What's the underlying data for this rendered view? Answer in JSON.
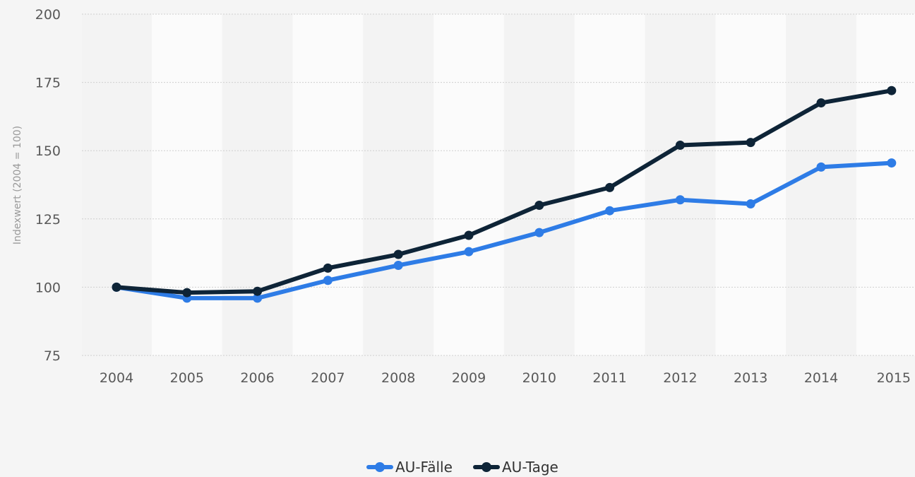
{
  "chart_data": {
    "type": "line",
    "ylabel": "Indexwert (2004 = 100)",
    "xlabel": "",
    "categories": [
      "2004",
      "2005",
      "2006",
      "2007",
      "2008",
      "2009",
      "2010",
      "2011",
      "2012",
      "2013",
      "2014",
      "2015"
    ],
    "ylim": [
      75,
      200
    ],
    "yticks": [
      75,
      100,
      125,
      150,
      175,
      200
    ],
    "grid": true,
    "legend": "bottom-center",
    "series": [
      {
        "name": "AU-Fälle",
        "color": "#2e7ce6",
        "values": [
          100,
          96,
          96,
          102.5,
          108,
          113,
          120,
          128,
          132,
          130.5,
          144,
          145.5
        ]
      },
      {
        "name": "AU-Tage",
        "color": "#0e2437",
        "values": [
          100,
          98,
          98.5,
          107,
          112,
          119,
          130,
          136.5,
          152,
          153,
          167.5,
          172
        ]
      }
    ]
  }
}
